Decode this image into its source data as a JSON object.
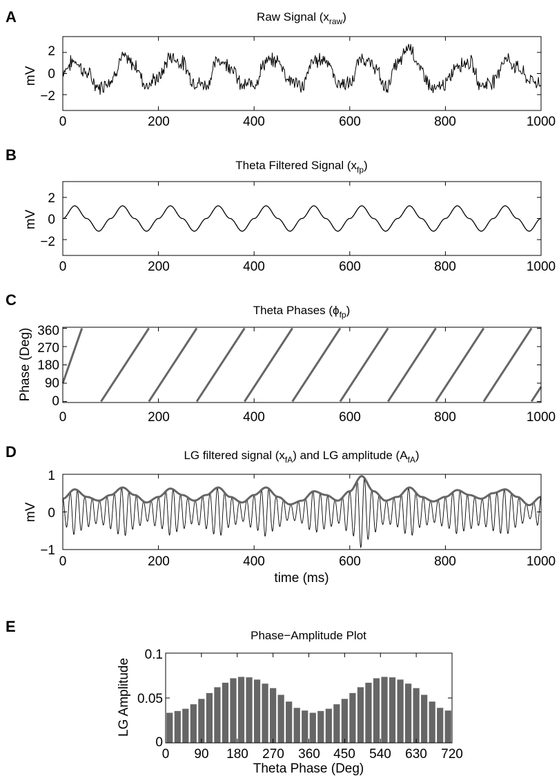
{
  "chart_data": [
    {
      "panel_letter": "A",
      "type": "line",
      "title": "Raw Signal (x",
      "title_sub": "raw",
      "title_end": ")",
      "xlabel": "",
      "ylabel": "mV",
      "xlim": [
        0,
        1000
      ],
      "ylim": [
        -3.5,
        3.5
      ],
      "xticks": [
        "0",
        "200",
        "400",
        "600",
        "800",
        "1000"
      ],
      "yticks": [
        "2",
        "0",
        "−2"
      ],
      "series": [
        {
          "color": "#000000",
          "x": [
            0,
            25,
            50,
            75,
            100,
            125,
            150,
            175,
            200,
            225,
            250,
            275,
            300,
            325,
            350,
            375,
            400,
            425,
            450,
            475,
            500,
            525,
            550,
            575,
            600,
            625,
            650,
            675,
            700,
            725,
            750,
            775,
            800,
            825,
            850,
            875,
            900,
            925,
            950,
            975,
            1000
          ],
          "y": [
            0.3,
            1.2,
            0.0,
            -1.3,
            -0.6,
            1.5,
            0.8,
            -1.1,
            -0.4,
            1.6,
            1.0,
            -0.8,
            -1.1,
            1.3,
            0.8,
            -1.2,
            -0.9,
            1.1,
            1.2,
            -0.6,
            -1.2,
            1.2,
            1.4,
            -0.9,
            -1.0,
            1.5,
            0.7,
            -1.3,
            0.9,
            2.6,
            0.2,
            -1.6,
            -1.0,
            0.9,
            1.1,
            -1.1,
            -0.7,
            1.4,
            0.6,
            -0.6,
            -0.9
          ]
        }
      ]
    },
    {
      "panel_letter": "B",
      "type": "line",
      "title": "Theta Filtered Signal (x",
      "title_sub": "fp",
      "title_end": ")",
      "xlabel": "",
      "ylabel": "mV",
      "xlim": [
        0,
        1000
      ],
      "ylim": [
        -3.5,
        3.5
      ],
      "xticks": [
        "0",
        "200",
        "400",
        "600",
        "800",
        "1000"
      ],
      "yticks": [
        "2",
        "0",
        "−2"
      ],
      "series": [
        {
          "color": "#000000",
          "x": [
            0,
            25,
            50,
            75,
            100,
            125,
            150,
            175,
            200,
            225,
            250,
            275,
            300,
            325,
            350,
            375,
            400,
            425,
            450,
            475,
            500,
            525,
            550,
            575,
            600,
            625,
            650,
            675,
            700,
            725,
            750,
            775,
            800,
            825,
            850,
            875,
            900,
            925,
            950,
            975,
            1000
          ],
          "y": [
            0,
            1.2,
            0,
            -1.2,
            0,
            1.2,
            0,
            -1.2,
            0,
            1.2,
            0,
            -1.2,
            0,
            1.2,
            0,
            -1.2,
            0,
            1.2,
            0,
            -1.2,
            0,
            1.2,
            0,
            -1.2,
            0,
            1.2,
            0,
            -1.2,
            0,
            1.2,
            0,
            -1.2,
            0,
            1.2,
            0,
            -1.2,
            0,
            1.2,
            0,
            -1.2,
            0
          ]
        }
      ]
    },
    {
      "panel_letter": "C",
      "type": "line",
      "title": "Theta Phases (ϕ",
      "title_sub": "fp",
      "title_end": ")",
      "xlabel": "",
      "ylabel": "Phase (Deg)",
      "xlim": [
        0,
        1000
      ],
      "ylim": [
        -5,
        365
      ],
      "xticks": [
        "0",
        "200",
        "400",
        "600",
        "800",
        "1000"
      ],
      "yticks": [
        "360",
        "270",
        "180",
        "90",
        "0"
      ],
      "series": [
        {
          "color": "#666666",
          "phase_segments": [
            [
              [
                0,
                90
              ],
              [
                40,
                360
              ]
            ],
            [
              [
                80,
                0
              ],
              [
                180,
                360
              ]
            ],
            [
              [
                180,
                0
              ],
              [
                280,
                360
              ]
            ],
            [
              [
                280,
                0
              ],
              [
                380,
                360
              ]
            ],
            [
              [
                380,
                0
              ],
              [
                480,
                360
              ]
            ],
            [
              [
                480,
                0
              ],
              [
                580,
                360
              ]
            ],
            [
              [
                580,
                0
              ],
              [
                680,
                360
              ]
            ],
            [
              [
                680,
                0
              ],
              [
                780,
                360
              ]
            ],
            [
              [
                780,
                0
              ],
              [
                880,
                360
              ]
            ],
            [
              [
                880,
                0
              ],
              [
                980,
                360
              ]
            ],
            [
              [
                980,
                0
              ],
              [
                1000,
                72
              ]
            ]
          ]
        }
      ]
    },
    {
      "panel_letter": "D",
      "type": "line",
      "title": "LG filtered signal (x",
      "title_sub": "fA",
      "title_mid": ") and LG amplitude (A",
      "title_sub2": "fA",
      "title_end": ")",
      "xlabel": "time (ms)",
      "ylabel": "mV",
      "xlim": [
        0,
        1000
      ],
      "ylim": [
        -1,
        1
      ],
      "xticks": [
        "0",
        "200",
        "400",
        "600",
        "800",
        "1000"
      ],
      "yticks": [
        "1",
        "0",
        "−1"
      ],
      "lg_frequency_hz": 65,
      "series": [
        {
          "name": "x",
          "color": "#000000",
          "description": "oscillation bounded by amplitude envelope"
        },
        {
          "name": "A",
          "color": "#666666",
          "x": [
            0,
            25,
            50,
            75,
            100,
            125,
            150,
            175,
            200,
            225,
            250,
            275,
            300,
            325,
            350,
            375,
            400,
            425,
            450,
            475,
            500,
            525,
            550,
            575,
            600,
            625,
            650,
            675,
            700,
            725,
            750,
            775,
            800,
            825,
            850,
            875,
            900,
            925,
            950,
            975,
            1000
          ],
          "y": [
            0.35,
            0.6,
            0.4,
            0.3,
            0.45,
            0.65,
            0.45,
            0.25,
            0.4,
            0.62,
            0.45,
            0.3,
            0.45,
            0.65,
            0.4,
            0.25,
            0.45,
            0.65,
            0.4,
            0.2,
            0.3,
            0.55,
            0.45,
            0.3,
            0.55,
            0.95,
            0.55,
            0.3,
            0.4,
            0.65,
            0.4,
            0.28,
            0.4,
            0.58,
            0.45,
            0.35,
            0.5,
            0.6,
            0.4,
            0.18,
            0.4
          ]
        }
      ]
    },
    {
      "panel_letter": "E",
      "type": "bar",
      "title": "Phase−Amplitude Plot",
      "xlabel": "Theta Phase (Deg)",
      "ylabel": "LG Amplitude",
      "xlim": [
        0,
        720
      ],
      "ylim": [
        0,
        0.1
      ],
      "xticks": [
        "0",
        "90",
        "180",
        "270",
        "360",
        "450",
        "540",
        "630",
        "720"
      ],
      "yticks": [
        "0.1",
        "0.05",
        "0"
      ],
      "bin_width_deg": 20,
      "bin_centers": [
        10,
        30,
        50,
        70,
        90,
        110,
        130,
        150,
        170,
        190,
        210,
        230,
        250,
        270,
        290,
        310,
        330,
        350,
        370,
        390,
        410,
        430,
        450,
        470,
        490,
        510,
        530,
        550,
        570,
        590,
        610,
        630,
        650,
        670,
        690,
        710
      ],
      "values": [
        0.0335,
        0.0355,
        0.038,
        0.043,
        0.049,
        0.0555,
        0.062,
        0.067,
        0.072,
        0.0735,
        0.073,
        0.0705,
        0.066,
        0.061,
        0.0535,
        0.046,
        0.039,
        0.036,
        0.0335,
        0.0355,
        0.038,
        0.043,
        0.049,
        0.0555,
        0.062,
        0.067,
        0.072,
        0.0735,
        0.073,
        0.0705,
        0.066,
        0.061,
        0.0535,
        0.046,
        0.039,
        0.036
      ],
      "color": "#666666"
    }
  ]
}
